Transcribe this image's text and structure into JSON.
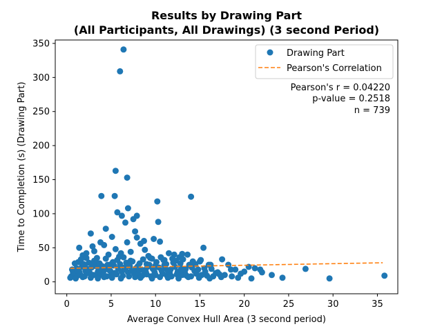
{
  "chart_data": {
    "type": "scatter",
    "title_line1": "Results by Drawing Part",
    "title_line2": "(All Participants, All Drawings) (3 second Period)",
    "xlabel": "Average Convex Hull Area (3 second period)",
    "ylabel": "Time to Completion (s) (Drawing Part)",
    "xlim": [
      -1.3,
      37.3
    ],
    "ylim": [
      -17.5,
      355
    ],
    "xticks": [
      0,
      5,
      10,
      15,
      20,
      25,
      30,
      35
    ],
    "yticks": [
      0,
      50,
      100,
      150,
      200,
      250,
      300,
      350
    ],
    "grid": false,
    "legend_position": "upper-right",
    "legend": [
      {
        "label": "Drawing Part",
        "type": "marker",
        "color": "#1f77b4"
      },
      {
        "label": "Pearson's Correlation",
        "type": "dashed-line",
        "color": "#ff7f0e"
      }
    ],
    "stats": {
      "r": "Pearson's r = 0.04220",
      "p": "p-value = 0.2518",
      "n": "n = 739"
    },
    "point_color": "#1f77b4",
    "line_color": "#ff7f0e",
    "regression_line": {
      "x": [
        0.4,
        35.6
      ],
      "y": [
        19.8,
        28.0
      ]
    },
    "series": [
      {
        "name": "Drawing Part",
        "x": [
          6.4,
          6.0,
          5.5,
          6.8,
          3.9,
          5.4,
          10.2,
          14.0,
          6.9,
          6.2,
          7.9,
          5.7,
          7.5,
          6.6,
          10.3,
          4.4,
          7.7,
          2.7,
          5.1,
          7.9,
          8.7,
          3.8,
          10.5,
          6.8,
          4.2,
          8.3,
          9.8,
          15.4,
          1.4,
          2.9,
          13.0,
          13.6,
          12.1,
          17.5,
          3.1,
          5.5,
          7.2,
          8.8,
          11.5,
          9.2,
          4.7,
          6.1,
          12.7,
          10.6,
          2.2,
          1.8,
          3.4,
          5.9,
          9.6,
          11.0,
          14.3,
          16.2,
          15.0,
          16.0,
          18.2,
          19.0,
          20.5,
          21.2,
          19.6,
          17.0,
          18.5,
          20.0,
          21.8,
          22.0,
          23.1,
          24.3,
          26.9,
          29.6,
          35.8,
          0.5,
          0.8,
          1.0,
          1.2,
          1.5,
          2.0,
          2.4,
          3.0,
          3.6,
          4.0,
          4.5,
          5.0,
          5.6,
          6.3,
          7.0,
          7.6,
          8.1,
          8.5,
          9.0,
          9.5,
          10.0,
          10.8,
          11.3,
          11.8,
          12.4,
          13.0,
          13.5,
          14.0,
          14.6,
          15.2,
          15.8,
          16.5,
          17.2,
          17.8,
          18.6,
          0.6,
          1.1,
          1.7,
          2.3,
          2.8,
          3.3,
          3.9,
          4.3,
          4.8,
          5.3,
          5.8,
          6.5,
          7.1,
          7.8,
          8.4,
          9.1,
          9.7,
          10.4,
          11.1,
          11.7,
          12.2,
          12.9,
          13.4,
          14.1,
          14.8,
          15.5,
          16.3,
          0.9,
          1.3,
          1.9,
          2.5,
          3.2,
          3.7,
          4.6,
          5.2,
          6.0,
          6.7,
          7.4,
          8.2,
          9.3,
          10.1,
          11.2,
          12.0,
          12.8,
          13.8,
          14.5,
          0.7,
          1.4,
          2.1,
          2.6,
          3.5,
          4.1,
          4.9,
          5.4,
          6.2,
          6.9,
          7.3,
          8.0,
          8.9,
          9.9,
          10.7,
          11.6,
          12.5,
          13.3,
          14.4,
          15.6,
          16.8,
          1.6,
          2.2,
          3.1,
          4.4,
          5.7,
          6.4,
          7.2,
          8.6,
          9.4,
          10.9,
          11.9,
          12.3,
          13.1,
          14.2,
          15.1,
          0.4,
          1.0,
          1.8,
          2.7,
          3.5,
          4.2,
          5.1,
          6.1,
          7.7,
          8.3,
          9.6,
          10.5,
          11.4,
          12.6,
          13.7,
          14.9,
          16.1,
          17.4,
          19.3,
          20.8,
          2.0,
          3.0,
          4.0,
          5.0,
          6.0,
          7.0,
          8.0,
          9.0,
          10.0,
          11.0,
          1.2,
          2.4,
          3.6,
          4.8,
          6.6,
          7.5,
          8.7,
          9.8,
          11.4,
          12.9
        ],
        "y": [
          341,
          309,
          163,
          153,
          126,
          126,
          118,
          125,
          108,
          97,
          97,
          102,
          92,
          87,
          88,
          78,
          74,
          71,
          66,
          65,
          60,
          58,
          59,
          58,
          54,
          56,
          63,
          50,
          50,
          52,
          41,
          40,
          40,
          33,
          45,
          48,
          44,
          47,
          42,
          38,
          40,
          42,
          36,
          36,
          42,
          39,
          35,
          37,
          34,
          32,
          27,
          25,
          30,
          25,
          25,
          18,
          22,
          20,
          12,
          14,
          18,
          15,
          18,
          14,
          10,
          6,
          19,
          5,
          9,
          8,
          10,
          12,
          9,
          11,
          8,
          13,
          10,
          9,
          12,
          8,
          10,
          11,
          9,
          8,
          12,
          10,
          9,
          11,
          8,
          10,
          12,
          9,
          8,
          11,
          10,
          9,
          8,
          12,
          10,
          9,
          8,
          11,
          10,
          8,
          18,
          20,
          22,
          19,
          21,
          23,
          20,
          18,
          22,
          24,
          19,
          21,
          23,
          20,
          18,
          22,
          19,
          21,
          20,
          18,
          22,
          20,
          19,
          21,
          18,
          20,
          19,
          27,
          29,
          26,
          28,
          30,
          27,
          25,
          29,
          26,
          28,
          30,
          27,
          25,
          29,
          26,
          28,
          27,
          25,
          26,
          14,
          15,
          16,
          13,
          15,
          14,
          16,
          13,
          15,
          14,
          16,
          13,
          15,
          14,
          16,
          13,
          15,
          14,
          16,
          15,
          13,
          33,
          35,
          31,
          34,
          32,
          36,
          31,
          33,
          35,
          32,
          34,
          31,
          33,
          30,
          32,
          6,
          5,
          7,
          6,
          5,
          7,
          6,
          5,
          7,
          6,
          5,
          7,
          6,
          5,
          7,
          6,
          5,
          7,
          6,
          5,
          24,
          25,
          23,
          26,
          24,
          25,
          23,
          26,
          24,
          25,
          17,
          18,
          16,
          17,
          18,
          16,
          17,
          18,
          16,
          17
        ]
      }
    ]
  }
}
